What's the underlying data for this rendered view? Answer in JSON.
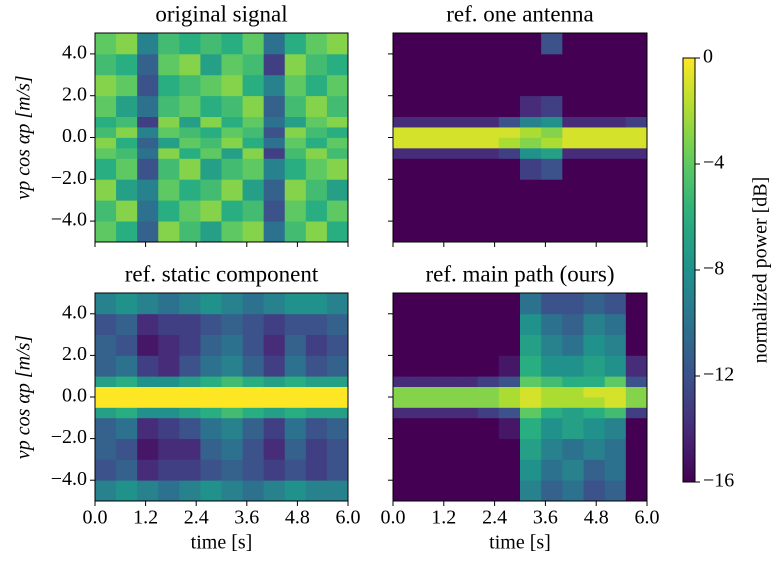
{
  "chart_data": [
    {
      "type": "heatmap",
      "title": "original signal",
      "ylabel": "vp cos αp [m/s]",
      "x_bins": [
        0,
        0.5,
        1,
        1.5,
        2,
        2.5,
        3,
        3.5,
        4,
        4.5,
        5,
        5.5,
        6
      ],
      "y_bins": [
        -5,
        -4,
        -3,
        -2,
        -1,
        -0.5,
        0,
        0.5,
        1,
        2,
        3,
        4,
        5
      ],
      "xlim": [
        0,
        6
      ],
      "ylim": [
        -5,
        5
      ],
      "xticks": [
        0,
        1.2,
        2.4,
        3.6,
        4.8,
        6
      ],
      "xticklabels": false,
      "yticks": [
        {
          "value": -4,
          "label": "−4.0"
        },
        {
          "value": -2,
          "label": "−2.0"
        },
        {
          "value": 0,
          "label": "0.0"
        },
        {
          "value": 2,
          "label": "2.0"
        },
        {
          "value": 4,
          "label": "4.0"
        }
      ],
      "z": [
        [
          -4,
          -6,
          -11,
          -3,
          -5,
          -7,
          -4,
          -3,
          -10,
          -5,
          -3,
          -6
        ],
        [
          -5,
          -3,
          -10,
          -6,
          -4,
          -3,
          -6,
          -5,
          -12,
          -4,
          -6,
          -4
        ],
        [
          -3,
          -7,
          -9,
          -4,
          -6,
          -5,
          -3,
          -7,
          -11,
          -3,
          -5,
          -7
        ],
        [
          -6,
          -4,
          -12,
          -5,
          -3,
          -7,
          -5,
          -4,
          -9,
          -6,
          -4,
          -3
        ],
        [
          -4,
          -5,
          -10,
          -3,
          -6,
          -4,
          -7,
          -3,
          -13,
          -5,
          -3,
          -5
        ],
        [
          -3,
          -6,
          -11,
          -7,
          -4,
          -5,
          -3,
          -6,
          -10,
          -4,
          -6,
          -4
        ],
        [
          -5,
          -3,
          -9,
          -4,
          -5,
          -6,
          -4,
          -5,
          -12,
          -3,
          -5,
          -6
        ],
        [
          -6,
          -5,
          -13,
          -3,
          -7,
          -3,
          -6,
          -4,
          -10,
          -7,
          -4,
          -3
        ],
        [
          -4,
          -7,
          -10,
          -5,
          -4,
          -6,
          -5,
          -3,
          -11,
          -5,
          -3,
          -5
        ],
        [
          -3,
          -4,
          -12,
          -6,
          -5,
          -4,
          -3,
          -6,
          -9,
          -4,
          -6,
          -4
        ],
        [
          -5,
          -6,
          -11,
          -4,
          -3,
          -7,
          -4,
          -5,
          -13,
          -3,
          -5,
          -6
        ],
        [
          -4,
          -3,
          -9,
          -5,
          -6,
          -5,
          -6,
          -4,
          -10,
          -6,
          -4,
          -3
        ]
      ]
    },
    {
      "type": "heatmap",
      "title": "ref. one antenna",
      "x_bins": [
        0,
        0.5,
        1,
        1.5,
        2,
        2.5,
        3,
        3.5,
        4,
        4.5,
        5,
        5.5,
        6
      ],
      "y_bins": [
        -5,
        -4,
        -3,
        -2,
        -1,
        -0.5,
        0,
        0.5,
        1,
        2,
        3,
        4,
        5
      ],
      "xlim": [
        0,
        6
      ],
      "ylim": [
        -5,
        5
      ],
      "xticks": [
        0,
        1.2,
        2.4,
        3.6,
        4.8,
        6
      ],
      "xticklabels": false,
      "yticks": [
        -4,
        -2,
        0,
        2,
        4
      ],
      "yticklabels": false,
      "z": [
        [
          -16,
          -16,
          -16,
          -16,
          -16,
          -16,
          -16,
          -16,
          -16,
          -16,
          -16,
          -16
        ],
        [
          -16,
          -16,
          -16,
          -16,
          -16,
          -16,
          -16,
          -16,
          -16,
          -16,
          -16,
          -16
        ],
        [
          -16,
          -16,
          -16,
          -16,
          -16,
          -16,
          -16,
          -16,
          -16,
          -16,
          -16,
          -16
        ],
        [
          -16,
          -16,
          -16,
          -16,
          -16,
          -16,
          -13,
          -12,
          -16,
          -16,
          -16,
          -16
        ],
        [
          -14,
          -14,
          -14,
          -14,
          -14,
          -13,
          -8,
          -7,
          -14,
          -14,
          -14,
          -14
        ],
        [
          -1,
          -1,
          -1,
          -1,
          -1,
          -2,
          -3,
          -2,
          -1,
          -1,
          -1,
          -1
        ],
        [
          -1,
          -1,
          -1,
          -1,
          -1,
          -1,
          -2,
          -3,
          -1,
          -1,
          -1,
          -1
        ],
        [
          -14,
          -14,
          -14,
          -14,
          -14,
          -12,
          -9,
          -8,
          -14,
          -14,
          -14,
          -13
        ],
        [
          -16,
          -16,
          -16,
          -16,
          -16,
          -16,
          -14,
          -13,
          -16,
          -16,
          -16,
          -16
        ],
        [
          -16,
          -16,
          -16,
          -16,
          -16,
          -16,
          -16,
          -16,
          -16,
          -16,
          -16,
          -16
        ],
        [
          -16,
          -16,
          -16,
          -16,
          -16,
          -16,
          -16,
          -16,
          -16,
          -16,
          -16,
          -16
        ],
        [
          -16,
          -16,
          -16,
          -16,
          -16,
          -16,
          -16,
          -12,
          -16,
          -16,
          -16,
          -16
        ]
      ]
    },
    {
      "type": "heatmap",
      "title": "ref. static component",
      "ylabel": "vp cos αp [m/s]",
      "xlabel": "time [s]",
      "x_bins": [
        0,
        0.5,
        1,
        1.5,
        2,
        2.5,
        3,
        3.5,
        4,
        4.5,
        5,
        5.5,
        6
      ],
      "y_bins": [
        -5,
        -4,
        -3,
        -2,
        -1,
        -0.5,
        0,
        0.5,
        1,
        2,
        3,
        4,
        5
      ],
      "xlim": [
        0,
        6
      ],
      "ylim": [
        -5,
        5
      ],
      "xticks": [
        {
          "value": 0,
          "label": "0.0"
        },
        1.2,
        2.4,
        3.6,
        4.8,
        {
          "value": 6,
          "label": "6.0"
        }
      ],
      "yticks": [
        {
          "value": -4,
          "label": "−4.0"
        },
        {
          "value": -2,
          "label": "−2.0"
        },
        {
          "value": 0,
          "label": "0.0"
        },
        {
          "value": 2,
          "label": "2.0"
        },
        {
          "value": 4,
          "label": "4.0"
        }
      ],
      "z": [
        [
          -9,
          -8,
          -9,
          -10,
          -9,
          -8,
          -9,
          -10,
          -9,
          -8,
          -9,
          -9
        ],
        [
          -12,
          -11,
          -14,
          -13,
          -13,
          -12,
          -11,
          -12,
          -13,
          -12,
          -13,
          -12
        ],
        [
          -11,
          -12,
          -15,
          -14,
          -14,
          -11,
          -10,
          -12,
          -14,
          -11,
          -13,
          -12
        ],
        [
          -11,
          -10,
          -14,
          -13,
          -12,
          -10,
          -9,
          -11,
          -13,
          -10,
          -12,
          -11
        ],
        [
          -7,
          -6,
          -8,
          -8,
          -7,
          -6,
          -5,
          -6,
          -7,
          -6,
          -7,
          -7
        ],
        [
          0,
          0,
          0,
          0,
          0,
          0,
          0,
          0,
          0,
          0,
          0,
          0
        ],
        [
          0,
          0,
          0,
          0,
          0,
          0,
          0,
          0,
          0,
          0,
          0,
          0
        ],
        [
          -7,
          -6,
          -8,
          -8,
          -7,
          -6,
          -5,
          -6,
          -7,
          -6,
          -7,
          -7
        ],
        [
          -11,
          -10,
          -13,
          -14,
          -12,
          -10,
          -9,
          -11,
          -13,
          -10,
          -12,
          -11
        ],
        [
          -11,
          -12,
          -15,
          -14,
          -13,
          -11,
          -10,
          -12,
          -14,
          -11,
          -13,
          -12
        ],
        [
          -12,
          -11,
          -14,
          -13,
          -13,
          -12,
          -11,
          -12,
          -13,
          -12,
          -12,
          -11
        ],
        [
          -9,
          -8,
          -9,
          -10,
          -9,
          -8,
          -9,
          -10,
          -9,
          -8,
          -8,
          -9
        ]
      ]
    },
    {
      "type": "heatmap",
      "title": "ref. main path (ours)",
      "xlabel": "time [s]",
      "x_bins": [
        0,
        0.5,
        1,
        1.5,
        2,
        2.5,
        3,
        3.5,
        4,
        4.5,
        5,
        5.5,
        6
      ],
      "y_bins": [
        -5,
        -4,
        -3,
        -2,
        -1,
        -0.5,
        0,
        0.5,
        1,
        2,
        3,
        4,
        5
      ],
      "xlim": [
        0,
        6
      ],
      "ylim": [
        -5,
        5
      ],
      "xticks": [
        {
          "value": 0,
          "label": "0.0"
        },
        1.2,
        2.4,
        3.6,
        4.8,
        {
          "value": 6,
          "label": "6.0"
        }
      ],
      "yticks": [
        -4,
        -2,
        0,
        2,
        4
      ],
      "yticklabels": false,
      "z": [
        [
          -16,
          -16,
          -16,
          -16,
          -16,
          -16,
          -9,
          -11,
          -10,
          -12,
          -11,
          -16
        ],
        [
          -16,
          -16,
          -16,
          -16,
          -16,
          -16,
          -8,
          -10,
          -9,
          -11,
          -10,
          -16
        ],
        [
          -16,
          -16,
          -16,
          -16,
          -16,
          -16,
          -7,
          -9,
          -10,
          -9,
          -10,
          -16
        ],
        [
          -16,
          -16,
          -16,
          -16,
          -16,
          -15,
          -6,
          -8,
          -7,
          -8,
          -9,
          -16
        ],
        [
          -14,
          -14,
          -14,
          -14,
          -13,
          -12,
          -4,
          -6,
          -7,
          -6,
          -5,
          -13
        ],
        [
          -3,
          -3,
          -3,
          -3,
          -3,
          -2,
          -1,
          -2,
          -2,
          -2,
          -1,
          -3
        ],
        [
          -3,
          -3,
          -3,
          -3,
          -3,
          -2,
          -1,
          -2,
          -2,
          -1,
          -1,
          -3
        ],
        [
          -14,
          -14,
          -14,
          -14,
          -13,
          -12,
          -4,
          -5,
          -6,
          -6,
          -4,
          -12
        ],
        [
          -16,
          -16,
          -16,
          -16,
          -16,
          -15,
          -6,
          -8,
          -8,
          -7,
          -8,
          -14
        ],
        [
          -16,
          -16,
          -16,
          -16,
          -16,
          -16,
          -7,
          -9,
          -10,
          -8,
          -9,
          -16
        ],
        [
          -16,
          -16,
          -16,
          -16,
          -16,
          -16,
          -8,
          -10,
          -11,
          -9,
          -10,
          -16
        ],
        [
          -16,
          -16,
          -16,
          -16,
          -16,
          -16,
          -10,
          -12,
          -12,
          -11,
          -12,
          -16
        ]
      ]
    }
  ],
  "colorbar": {
    "label": "normalized power [dB]",
    "colormap": "viridis",
    "lim": [
      -16,
      0
    ],
    "ticks": [
      0,
      {
        "value": -4,
        "label": "−4"
      },
      {
        "value": -8,
        "label": "−8"
      },
      {
        "value": -12,
        "label": "−12"
      },
      {
        "value": -16,
        "label": "−16"
      }
    ]
  }
}
